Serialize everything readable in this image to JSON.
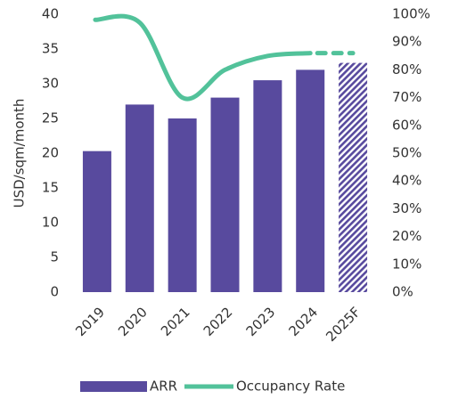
{
  "chart_data": {
    "type": "bar_line",
    "y_label": "USD/sqm/month",
    "categories": [
      "2019",
      "2020",
      "2021",
      "2022",
      "2023",
      "2024",
      "2025F"
    ],
    "series": [
      {
        "name": "ARR",
        "type": "bar",
        "color": "#584a9e",
        "values": [
          20.3,
          27,
          25,
          28,
          30.5,
          32,
          33
        ]
      },
      {
        "name": "Occupancy Rate",
        "type": "line",
        "axis": "y2",
        "color": "#52c29a",
        "values": [
          98,
          97,
          70,
          80,
          85,
          86,
          86
        ]
      }
    ],
    "ylim": [
      0,
      40
    ],
    "yticks": [
      0,
      5,
      10,
      15,
      20,
      25,
      30,
      35,
      40
    ],
    "y2lim": [
      0,
      100
    ],
    "y2ticks": [
      {
        "value": 0,
        "label": "0%"
      },
      {
        "value": 10,
        "label": "10%"
      },
      {
        "value": 20,
        "label": "20%"
      },
      {
        "value": 30,
        "label": "30%"
      },
      {
        "value": 40,
        "label": "40%"
      },
      {
        "value": 50,
        "label": "50%"
      },
      {
        "value": 60,
        "label": "60%"
      },
      {
        "value": 70,
        "label": "70%"
      },
      {
        "value": 80,
        "label": "80%"
      },
      {
        "value": 90,
        "label": "90%"
      },
      {
        "value": 100,
        "label": "100%"
      }
    ],
    "grid": false,
    "legend": "bottom"
  }
}
